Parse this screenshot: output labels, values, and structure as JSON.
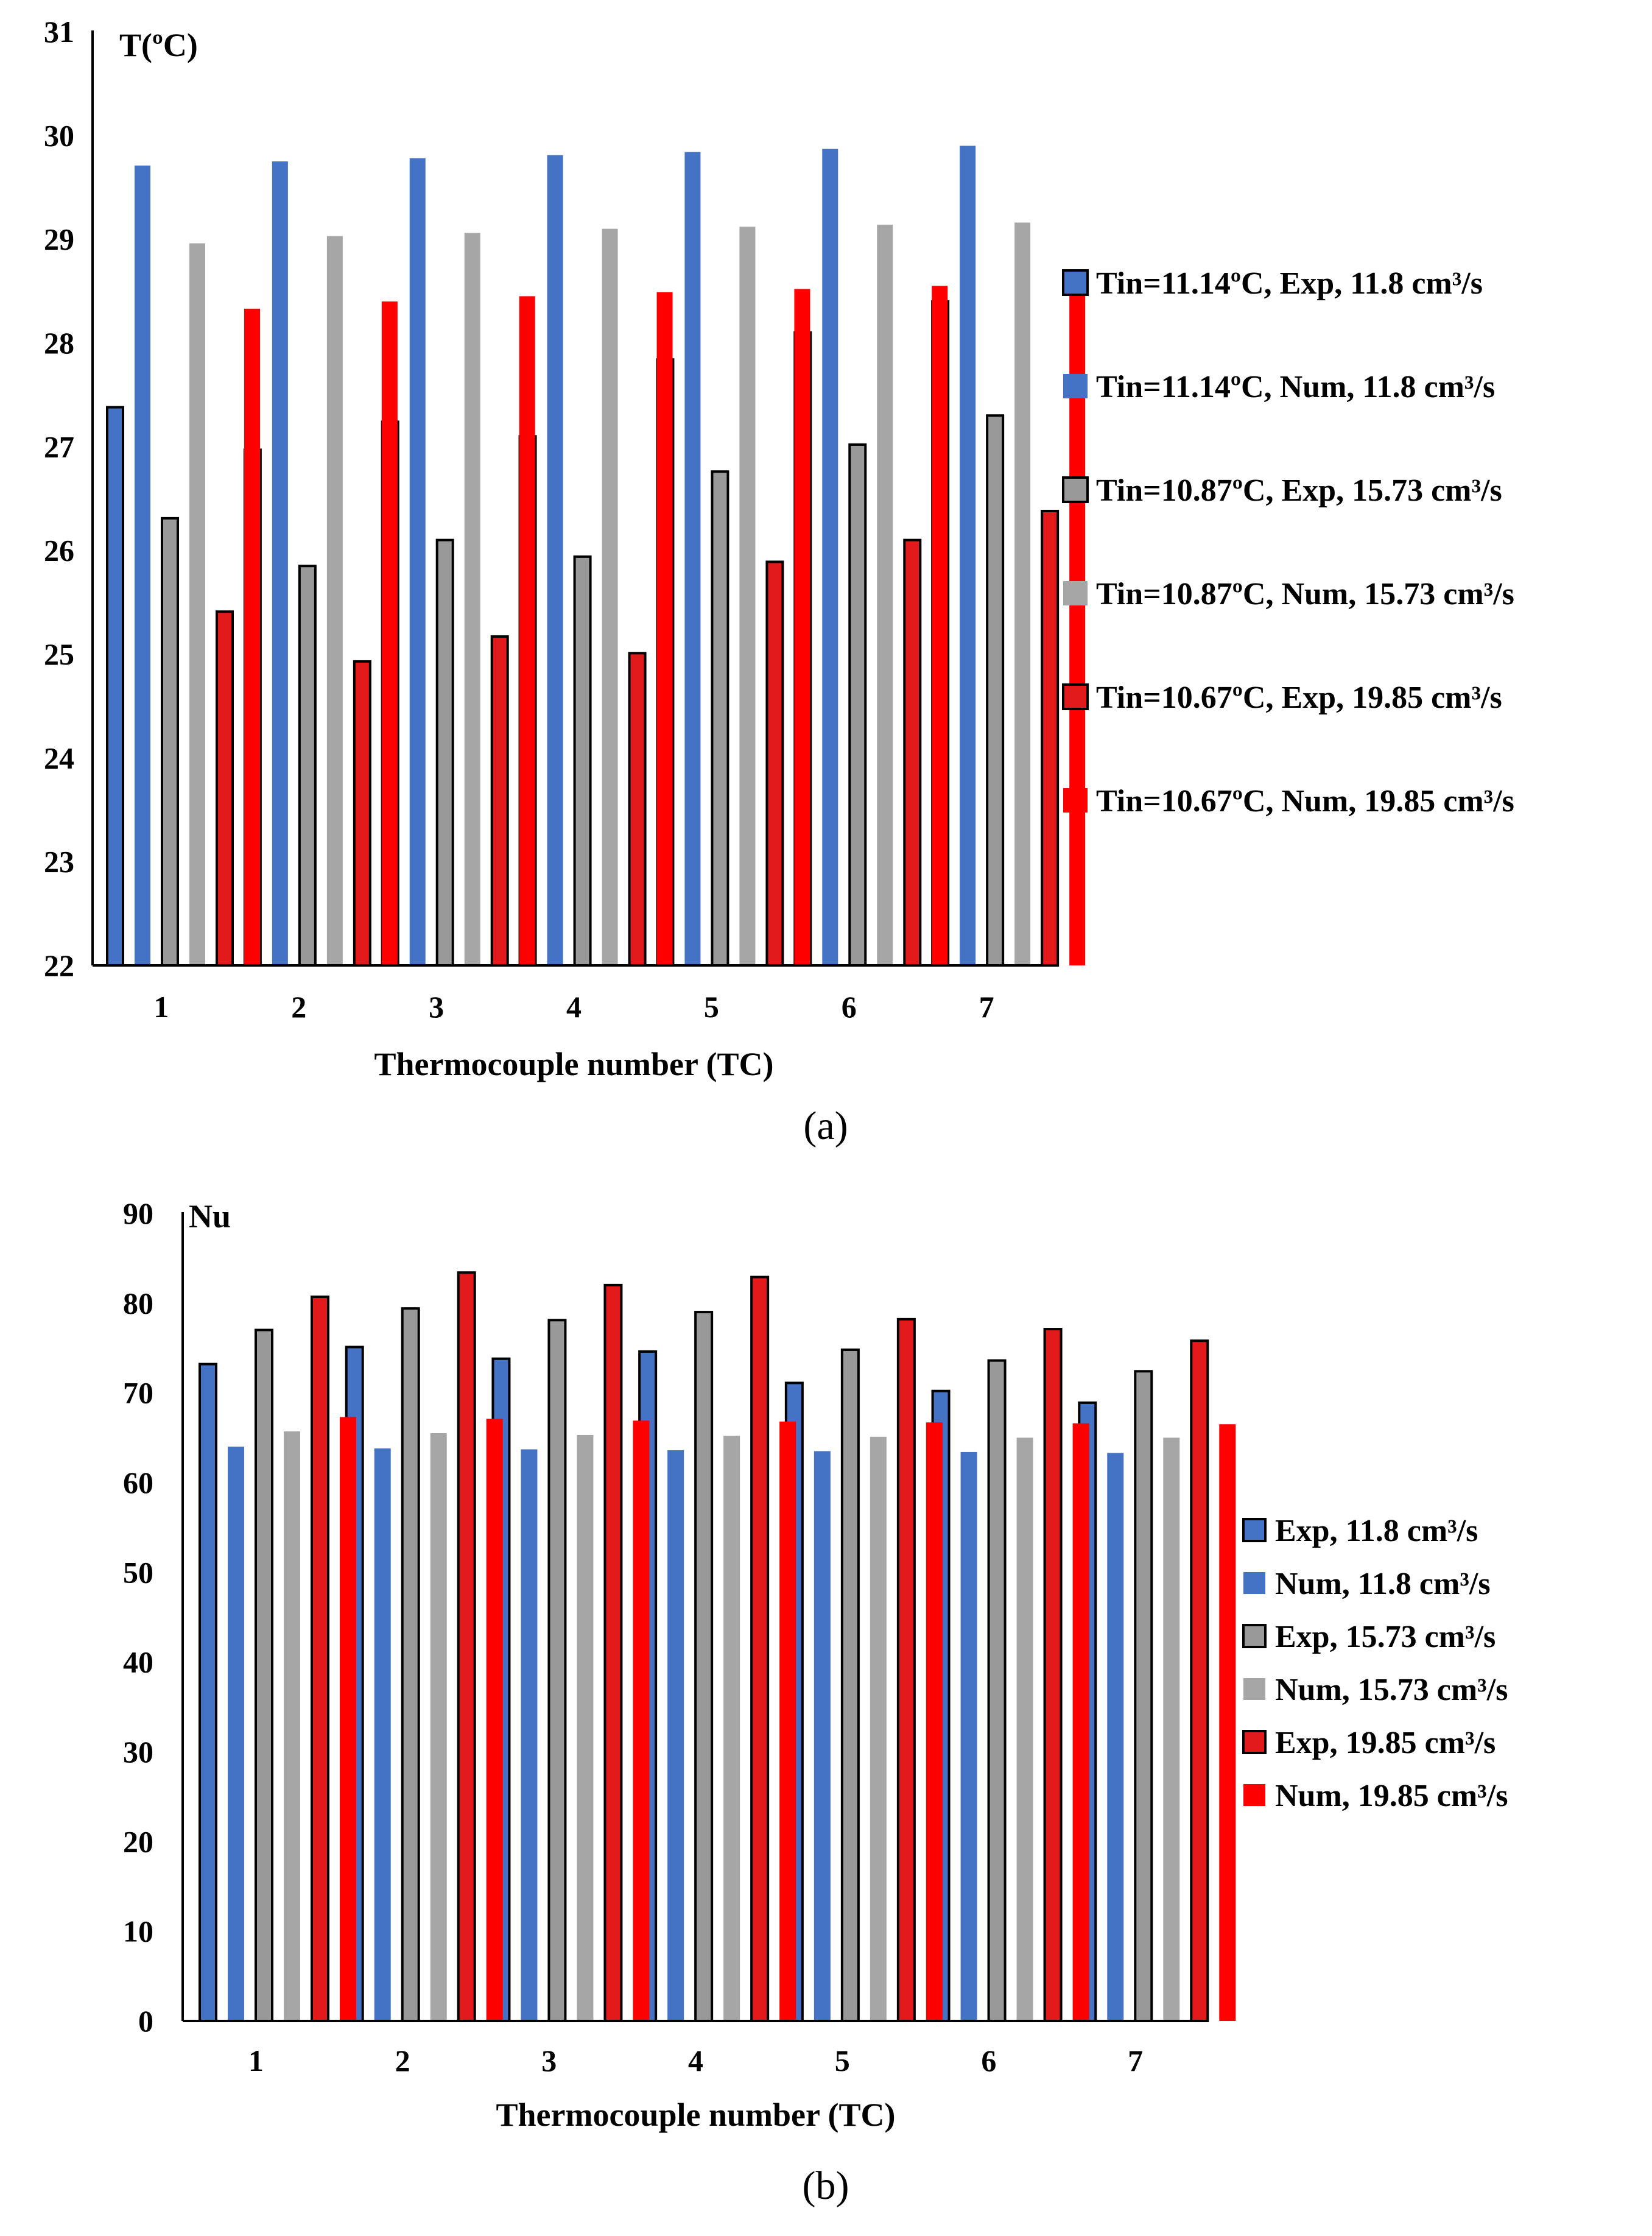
{
  "chart_data": [
    {
      "type": "bar",
      "panel_label": "(a)",
      "ylabel": "T(ºC)",
      "xlabel": "Thermocouple number (TC)",
      "categories": [
        "1",
        "2",
        "3",
        "4",
        "5",
        "6",
        "7"
      ],
      "ylim": [
        22,
        31
      ],
      "yticks": [
        "22",
        "23",
        "24",
        "25",
        "26",
        "27",
        "28",
        "29",
        "30",
        "31"
      ],
      "grid": false,
      "legend_position": "right",
      "series": [
        {
          "name": "Tin=11.14ºC, Exp, 11.8 cm³/s",
          "color": "#4472C4",
          "outline": true,
          "values": [
            27.38,
            26.97,
            27.24,
            27.1,
            27.84,
            28.1,
            28.4
          ]
        },
        {
          "name": "Tin=11.14ºC, Num, 11.8 cm³/s",
          "color": "#4472C4",
          "outline": false,
          "values": [
            29.71,
            29.75,
            29.78,
            29.81,
            29.84,
            29.87,
            29.9
          ]
        },
        {
          "name": "Tin=10.87ºC, Exp, 15.73 cm³/s",
          "color": "#999999",
          "outline": true,
          "values": [
            26.31,
            25.85,
            26.1,
            25.94,
            26.76,
            27.02,
            27.3
          ]
        },
        {
          "name": "Tin=10.87ºC, Num, 15.73 cm³/s",
          "color": "#A6A6A6",
          "outline": false,
          "values": [
            28.96,
            29.03,
            29.06,
            29.1,
            29.12,
            29.14,
            29.16
          ]
        },
        {
          "name": "Tin=10.67ºC, Exp, 19.85 cm³/s",
          "color": "#E31A1C",
          "outline": true,
          "values": [
            25.41,
            24.93,
            25.17,
            25.01,
            25.89,
            26.1,
            26.38
          ]
        },
        {
          "name": "Tin=10.67ºC, Num, 19.85 cm³/s",
          "color": "#FF0000",
          "outline": false,
          "values": [
            28.33,
            28.4,
            28.45,
            28.49,
            28.52,
            28.55,
            28.57
          ]
        }
      ]
    },
    {
      "type": "bar",
      "panel_label": "(b)",
      "ylabel": "Nu",
      "xlabel": "Thermocouple number (TC)",
      "categories": [
        "1",
        "2",
        "3",
        "4",
        "5",
        "6",
        "7"
      ],
      "ylim": [
        0,
        90
      ],
      "yticks": [
        "0",
        "10",
        "20",
        "30",
        "40",
        "50",
        "60",
        "70",
        "80",
        "90"
      ],
      "grid": false,
      "legend_position": "right",
      "series": [
        {
          "name": "Exp, 11.8 cm³/s",
          "color": "#4472C4",
          "outline": true,
          "values": [
            73.2,
            75.1,
            73.8,
            74.6,
            71.1,
            70.2,
            68.9
          ]
        },
        {
          "name": "Num, 11.8 cm³/s",
          "color": "#4472C4",
          "outline": false,
          "values": [
            64.0,
            63.8,
            63.7,
            63.6,
            63.5,
            63.4,
            63.3
          ]
        },
        {
          "name": "Exp, 15.73 cm³/s",
          "color": "#999999",
          "outline": true,
          "values": [
            77.0,
            79.4,
            78.1,
            79.0,
            74.8,
            73.6,
            72.4
          ]
        },
        {
          "name": "Num, 15.73 cm³/s",
          "color": "#A6A6A6",
          "outline": false,
          "values": [
            65.7,
            65.5,
            65.3,
            65.2,
            65.1,
            65.0,
            65.0
          ]
        },
        {
          "name": "Exp, 19.85 cm³/s",
          "color": "#E31A1C",
          "outline": true,
          "values": [
            80.7,
            83.4,
            82.0,
            82.9,
            78.2,
            77.1,
            75.8
          ]
        },
        {
          "name": "Num, 19.85 cm³/s",
          "color": "#FF0000",
          "outline": false,
          "values": [
            67.3,
            67.1,
            66.9,
            66.8,
            66.7,
            66.6,
            66.5
          ]
        }
      ]
    }
  ]
}
